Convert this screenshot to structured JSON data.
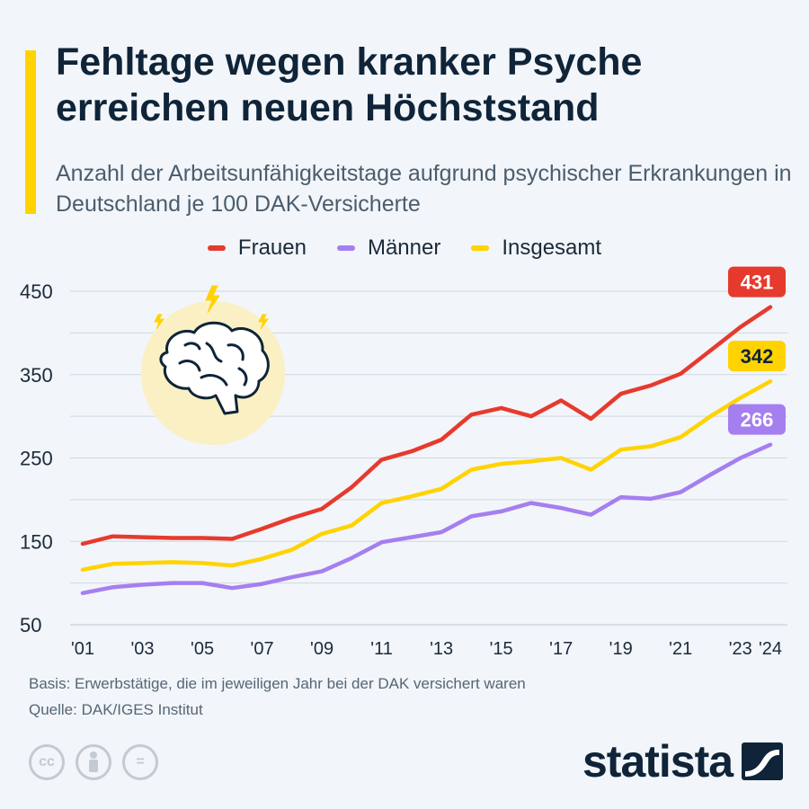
{
  "header": {
    "title": "Fehltage wegen kranker Psyche erreichen neuen Höchststand",
    "subtitle": "Anzahl der Arbeitsunfähigkeitstage aufgrund psychischer Erkrankungen in Deutschland je 100 DAK-Versicherte"
  },
  "colors": {
    "frauen": "#e63a2e",
    "maenner": "#a57ff0",
    "insgesamt": "#ffd300",
    "accent": "#ffd300",
    "grid": "#c9d2dc"
  },
  "chart_data": {
    "type": "line",
    "title": "Fehltage wegen kranker Psyche erreichen neuen Höchststand",
    "xlabel": "",
    "ylabel": "",
    "ylim": [
      50,
      450
    ],
    "yticks": [
      50,
      150,
      250,
      350,
      450
    ],
    "x": [
      2001,
      2002,
      2003,
      2004,
      2005,
      2006,
      2007,
      2008,
      2009,
      2010,
      2011,
      2012,
      2013,
      2014,
      2015,
      2016,
      2017,
      2018,
      2019,
      2020,
      2021,
      2022,
      2023,
      2024
    ],
    "xtick_labels": [
      {
        "year": 2001,
        "label": "'01"
      },
      {
        "year": 2003,
        "label": "'03"
      },
      {
        "year": 2005,
        "label": "'05"
      },
      {
        "year": 2007,
        "label": "'07"
      },
      {
        "year": 2009,
        "label": "'09"
      },
      {
        "year": 2011,
        "label": "'11"
      },
      {
        "year": 2013,
        "label": "'13"
      },
      {
        "year": 2015,
        "label": "'15"
      },
      {
        "year": 2017,
        "label": "'17"
      },
      {
        "year": 2019,
        "label": "'19"
      },
      {
        "year": 2021,
        "label": "'21"
      },
      {
        "year": 2023,
        "label": "'23"
      },
      {
        "year": 2024,
        "label": "'24"
      }
    ],
    "legend_position": "top-center",
    "series": [
      {
        "key": "frauen",
        "name": "Frauen",
        "color": "#e63a2e",
        "values": [
          147,
          156,
          155,
          154,
          154,
          153,
          165,
          178,
          189,
          215,
          248,
          258,
          272,
          302,
          310,
          300,
          319,
          297,
          327,
          337,
          351,
          379,
          407,
          431
        ],
        "end_label": "431",
        "label_text_color": "#ffffff"
      },
      {
        "key": "maenner",
        "name": "Männer",
        "color": "#a57ff0",
        "values": [
          88,
          95,
          98,
          100,
          100,
          94,
          99,
          107,
          114,
          130,
          149,
          155,
          161,
          180,
          186,
          196,
          190,
          182,
          203,
          201,
          209,
          230,
          250,
          266
        ],
        "end_label": "266",
        "label_text_color": "#ffffff"
      },
      {
        "key": "insgesamt",
        "name": "Insgesamt",
        "color": "#ffd300",
        "values": [
          116,
          123,
          124,
          125,
          124,
          121,
          129,
          140,
          159,
          169,
          196,
          204,
          213,
          236,
          243,
          246,
          250,
          236,
          260,
          264,
          275,
          300,
          322,
          342
        ],
        "end_label": "342",
        "label_text_color": "#0f2438"
      }
    ]
  },
  "footer": {
    "basis": "Basis: Erwerbstätige, die im jeweiligen Jahr bei der DAK versichert waren",
    "quelle": "Quelle: DAK/IGES Institut",
    "cc_label": "cc",
    "by_icon": "person-icon",
    "nd_label": "=",
    "brand": "statista"
  }
}
